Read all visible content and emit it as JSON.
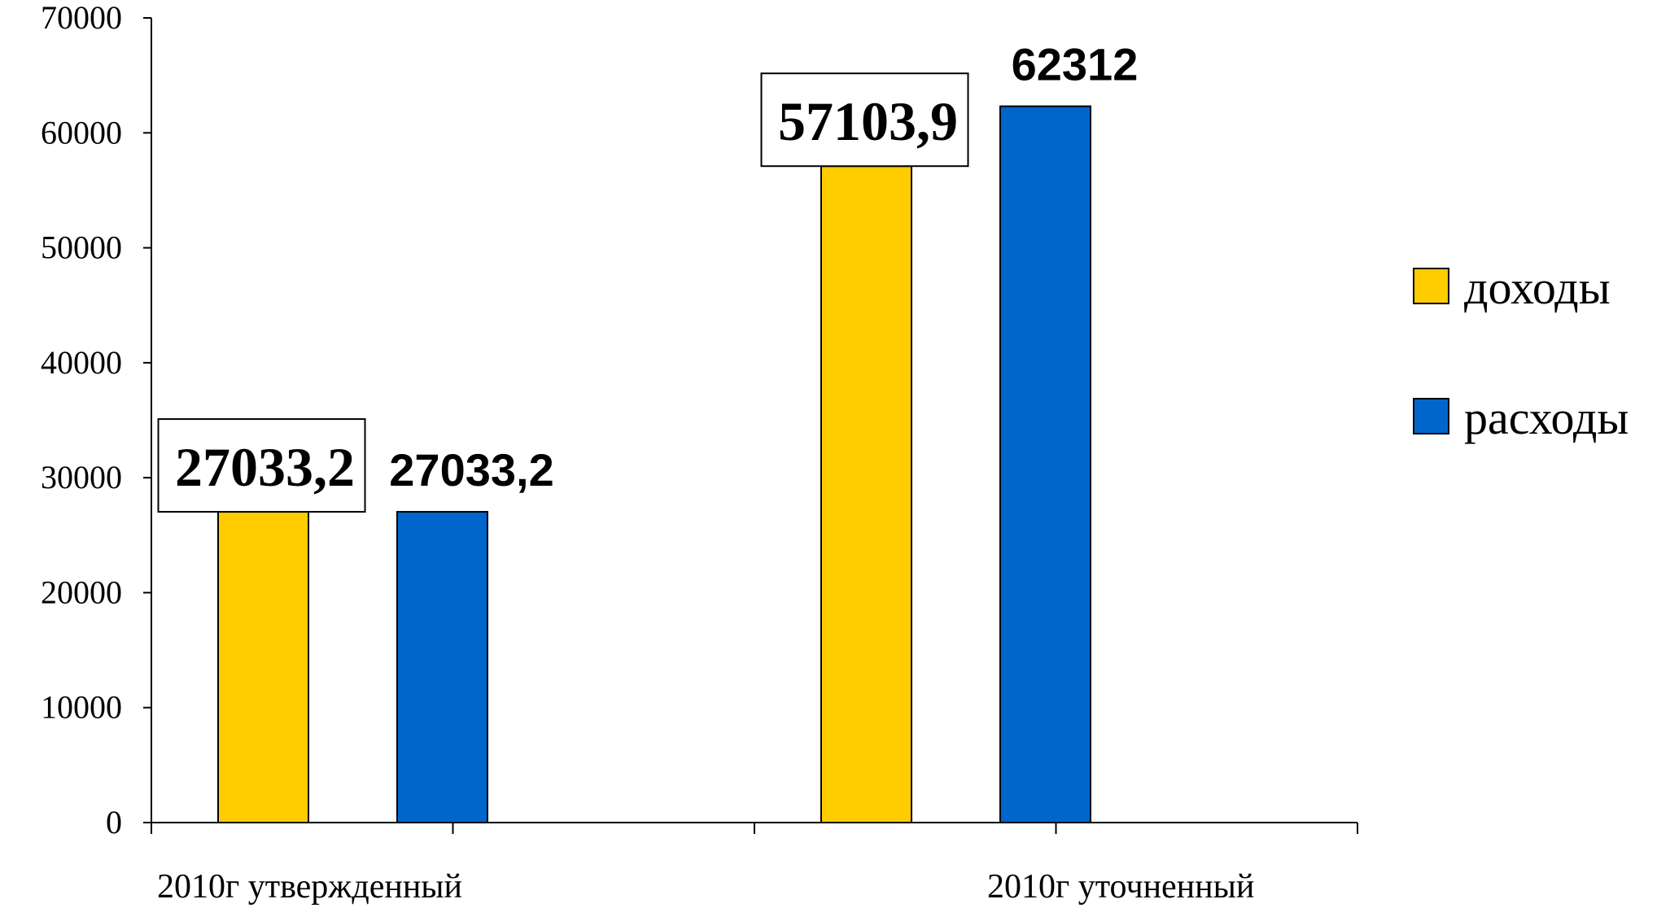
{
  "chart_data": {
    "type": "bar",
    "categories": [
      "2010г утвержденный",
      "2010г уточненный"
    ],
    "series": [
      {
        "name": "доходы",
        "values": [
          27033.2,
          57103.9
        ],
        "color": "#FFCC00"
      },
      {
        "name": "расходы",
        "values": [
          27033.2,
          62312
        ],
        "color": "#0066CC"
      }
    ],
    "data_labels": [
      [
        "27033,2",
        "57103,9"
      ],
      [
        "27033,2",
        "62312"
      ]
    ],
    "ylim": [
      0,
      70000
    ],
    "yticks": [
      0,
      10000,
      20000,
      30000,
      40000,
      50000,
      60000,
      70000
    ],
    "title": "",
    "xlabel": "",
    "ylabel": "",
    "legend_position": "right",
    "grid": false
  }
}
